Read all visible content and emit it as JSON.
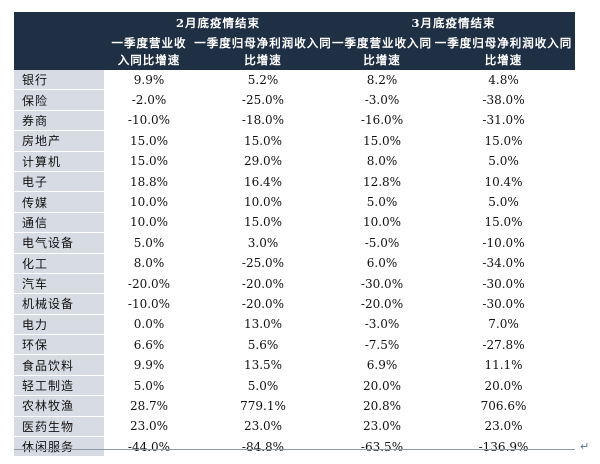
{
  "table": {
    "group_headers": [
      "2月底疫情结束",
      "3月底疫情结束"
    ],
    "sub_headers": [
      {
        "line1": "一季度营业收",
        "line2": "入同比增速"
      },
      {
        "line1": "一季度归母净利润收入同",
        "line2": "比增速"
      },
      {
        "line1": "一季度营业收入同",
        "line2": "比增速"
      },
      {
        "line1": "一季度归母净利润收入同",
        "line2": "比增速"
      }
    ],
    "rows": [
      {
        "industry": "银行",
        "values": [
          "9.9%",
          "5.2%",
          "8.2%",
          "4.8%"
        ]
      },
      {
        "industry": "保险",
        "values": [
          "-2.0%",
          "-25.0%",
          "-3.0%",
          "-38.0%"
        ]
      },
      {
        "industry": "券商",
        "values": [
          "-10.0%",
          "-18.0%",
          "-16.0%",
          "-31.0%"
        ]
      },
      {
        "industry": "房地产",
        "values": [
          "15.0%",
          "15.0%",
          "15.0%",
          "15.0%"
        ]
      },
      {
        "industry": "计算机",
        "values": [
          "15.0%",
          "29.0%",
          "8.0%",
          "5.0%"
        ]
      },
      {
        "industry": "电子",
        "values": [
          "18.8%",
          "16.4%",
          "12.8%",
          "10.4%"
        ]
      },
      {
        "industry": "传媒",
        "values": [
          "10.0%",
          "10.0%",
          "5.0%",
          "5.0%"
        ]
      },
      {
        "industry": "通信",
        "values": [
          "10.0%",
          "15.0%",
          "10.0%",
          "15.0%"
        ]
      },
      {
        "industry": "电气设备",
        "values": [
          "5.0%",
          "3.0%",
          "-5.0%",
          "-10.0%"
        ]
      },
      {
        "industry": "化工",
        "values": [
          "8.0%",
          "-25.0%",
          "6.0%",
          "-34.0%"
        ]
      },
      {
        "industry": "汽车",
        "values": [
          "-20.0%",
          "-20.0%",
          "-30.0%",
          "-30.0%"
        ]
      },
      {
        "industry": "机械设备",
        "values": [
          "-10.0%",
          "-20.0%",
          "-20.0%",
          "-30.0%"
        ]
      },
      {
        "industry": "电力",
        "values": [
          "0.0%",
          "13.0%",
          "-3.0%",
          "7.0%"
        ]
      },
      {
        "industry": "环保",
        "values": [
          "6.6%",
          "5.6%",
          "-7.5%",
          "-27.8%"
        ]
      },
      {
        "industry": "食品饮料",
        "values": [
          "9.9%",
          "13.5%",
          "6.9%",
          "11.1%"
        ]
      },
      {
        "industry": "轻工制造",
        "values": [
          "5.0%",
          "5.0%",
          "20.0%",
          "20.0%"
        ]
      },
      {
        "industry": "农林牧渔",
        "values": [
          "28.7%",
          "779.1%",
          "20.8%",
          "706.6%"
        ]
      },
      {
        "industry": "医药生物",
        "values": [
          "23.0%",
          "23.0%",
          "23.0%",
          "23.0%"
        ]
      },
      {
        "industry": "休闲服务",
        "values": [
          "-44.0%",
          "-84.8%",
          "-63.5%",
          "-136.9%"
        ]
      }
    ]
  },
  "colors": {
    "header_bg": "#1f2f44",
    "header_text": "#ffffff",
    "stub_bg": "#d7dbe3"
  },
  "icons": {
    "return_mark": "carriage-return-icon"
  }
}
